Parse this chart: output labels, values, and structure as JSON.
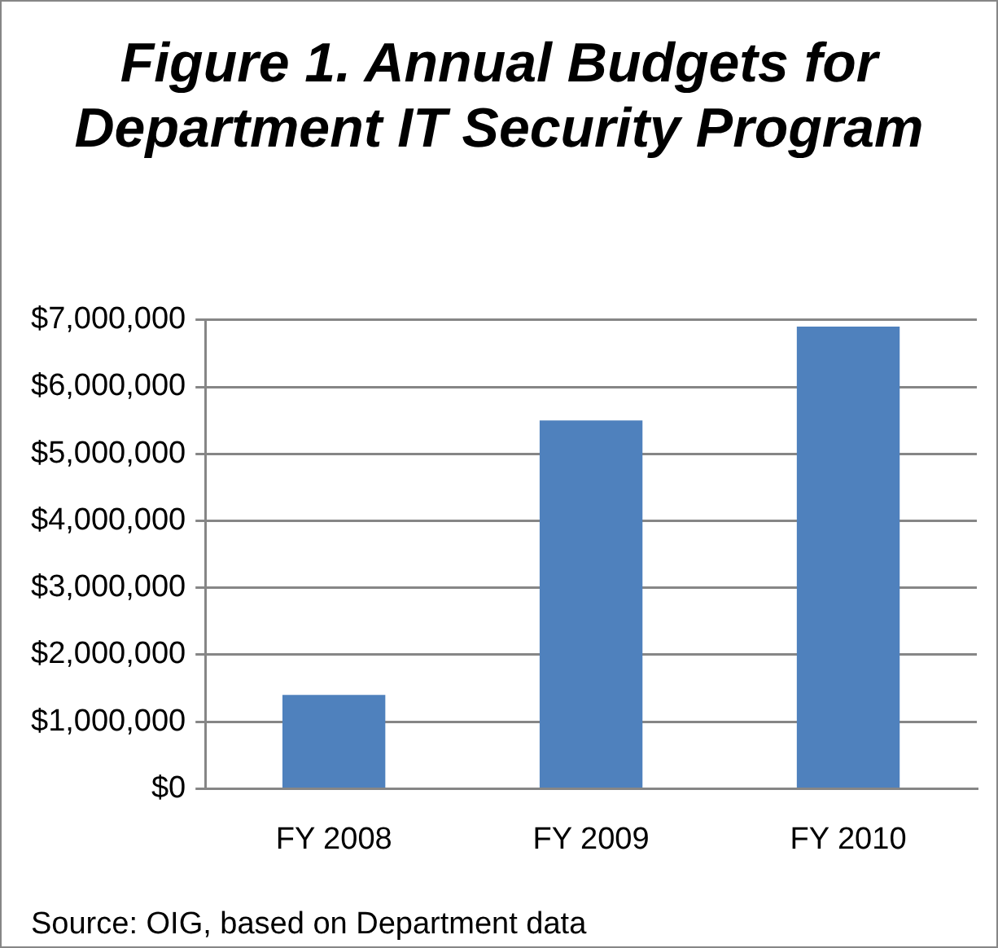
{
  "chart_data": {
    "type": "bar",
    "title": "Figure 1. Annual Budgets for Department IT Security Program",
    "categories": [
      "FY 2008",
      "FY 2009",
      "FY 2010"
    ],
    "values": [
      1400000,
      5500000,
      6900000
    ],
    "color": "#4f81bd",
    "ylim": [
      0,
      7000000
    ],
    "yticks": [
      {
        "value": 0,
        "label": "$0"
      },
      {
        "value": 1000000,
        "label": "$1,000,000"
      },
      {
        "value": 2000000,
        "label": "$2,000,000"
      },
      {
        "value": 3000000,
        "label": "$3,000,000"
      },
      {
        "value": 4000000,
        "label": "$4,000,000"
      },
      {
        "value": 5000000,
        "label": "$5,000,000"
      },
      {
        "value": 6000000,
        "label": "$6,000,000"
      },
      {
        "value": 7000000,
        "label": "$7,000,000"
      }
    ],
    "grid": "y",
    "legend": false,
    "annotations": [
      "Source: OIG, based on Department data"
    ]
  }
}
